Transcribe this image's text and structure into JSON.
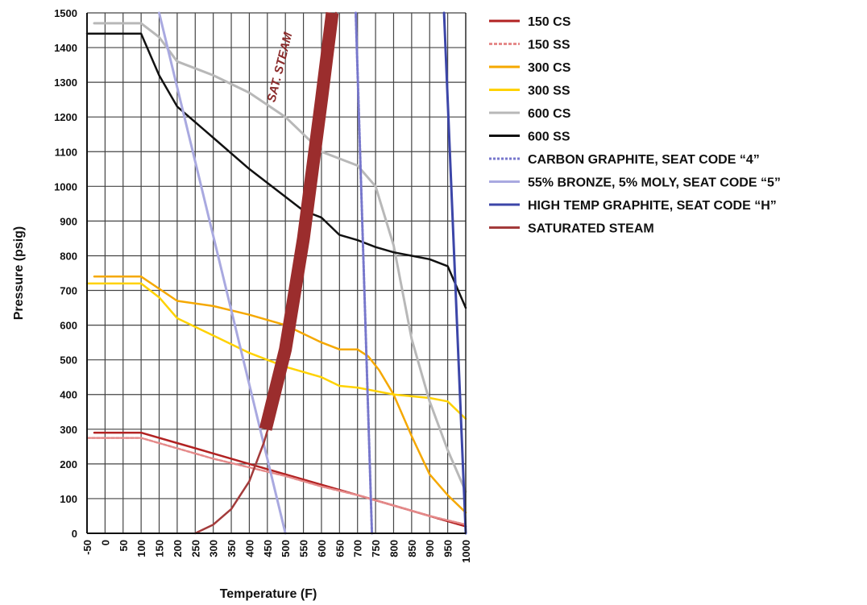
{
  "chart_data": {
    "type": "line",
    "title": "",
    "xlabel": "Temperature (F)",
    "ylabel": "Pressure (psig)",
    "xlim": [
      -50,
      1000
    ],
    "ylim": [
      0,
      1500
    ],
    "x_ticks": [
      -50,
      0,
      50,
      100,
      150,
      200,
      250,
      300,
      350,
      400,
      450,
      500,
      550,
      600,
      650,
      700,
      750,
      800,
      850,
      900,
      950,
      1000
    ],
    "y_ticks": [
      0,
      100,
      200,
      300,
      400,
      500,
      600,
      700,
      800,
      900,
      1000,
      1100,
      1200,
      1300,
      1400,
      1500
    ],
    "grid": true,
    "legend_position": "right",
    "annotations": [
      {
        "text": "SAT. STEAM",
        "x": 520,
        "y": 1380
      }
    ],
    "series": [
      {
        "name": "150 CS",
        "color": "#b22222",
        "width": 2.5,
        "dash": "",
        "points": [
          [
            -30,
            290
          ],
          [
            100,
            290
          ],
          [
            200,
            260
          ],
          [
            300,
            230
          ],
          [
            400,
            200
          ],
          [
            500,
            170
          ],
          [
            600,
            140
          ],
          [
            700,
            110
          ],
          [
            800,
            80
          ],
          [
            900,
            50
          ],
          [
            1000,
            20
          ]
        ]
      },
      {
        "name": "150 SS",
        "color": "#e58a8a",
        "width": 2.5,
        "dash": "4,2",
        "points": [
          [
            -50,
            275
          ],
          [
            100,
            275
          ],
          [
            200,
            245
          ],
          [
            300,
            215
          ],
          [
            400,
            190
          ],
          [
            500,
            165
          ],
          [
            600,
            135
          ],
          [
            700,
            110
          ],
          [
            800,
            80
          ],
          [
            900,
            50
          ],
          [
            1000,
            25
          ]
        ]
      },
      {
        "name": "300 CS",
        "color": "#f5a800",
        "width": 2.5,
        "dash": "",
        "points": [
          [
            -30,
            740
          ],
          [
            100,
            740
          ],
          [
            150,
            705
          ],
          [
            200,
            670
          ],
          [
            300,
            655
          ],
          [
            400,
            630
          ],
          [
            500,
            600
          ],
          [
            550,
            575
          ],
          [
            600,
            550
          ],
          [
            650,
            530
          ],
          [
            700,
            530
          ],
          [
            730,
            510
          ],
          [
            760,
            470
          ],
          [
            800,
            400
          ],
          [
            850,
            280
          ],
          [
            900,
            170
          ],
          [
            950,
            110
          ],
          [
            1000,
            60
          ]
        ]
      },
      {
        "name": "300 SS",
        "color": "#ffd200",
        "width": 2.5,
        "dash": "",
        "points": [
          [
            -50,
            720
          ],
          [
            100,
            720
          ],
          [
            150,
            680
          ],
          [
            200,
            620
          ],
          [
            300,
            570
          ],
          [
            400,
            520
          ],
          [
            500,
            480
          ],
          [
            600,
            450
          ],
          [
            650,
            425
          ],
          [
            700,
            420
          ],
          [
            800,
            400
          ],
          [
            900,
            390
          ],
          [
            950,
            380
          ],
          [
            1000,
            330
          ]
        ]
      },
      {
        "name": "600 CS",
        "color": "#b8b8b8",
        "width": 3,
        "dash": "",
        "points": [
          [
            -30,
            1470
          ],
          [
            100,
            1470
          ],
          [
            150,
            1430
          ],
          [
            200,
            1360
          ],
          [
            300,
            1320
          ],
          [
            400,
            1270
          ],
          [
            500,
            1200
          ],
          [
            550,
            1150
          ],
          [
            600,
            1100
          ],
          [
            650,
            1080
          ],
          [
            700,
            1060
          ],
          [
            750,
            1000
          ],
          [
            800,
            830
          ],
          [
            850,
            560
          ],
          [
            900,
            380
          ],
          [
            950,
            240
          ],
          [
            1000,
            120
          ]
        ]
      },
      {
        "name": "600 SS",
        "color": "#111111",
        "width": 2.5,
        "dash": "",
        "points": [
          [
            -50,
            1440
          ],
          [
            100,
            1440
          ],
          [
            150,
            1320
          ],
          [
            200,
            1230
          ],
          [
            300,
            1140
          ],
          [
            400,
            1050
          ],
          [
            500,
            970
          ],
          [
            550,
            930
          ],
          [
            600,
            910
          ],
          [
            650,
            860
          ],
          [
            700,
            845
          ],
          [
            750,
            825
          ],
          [
            800,
            810
          ],
          [
            900,
            790
          ],
          [
            950,
            770
          ],
          [
            1000,
            650
          ]
        ]
      },
      {
        "name": "CARBON GRAPHITE, SEAT CODE “4”",
        "color": "#7777cc",
        "width": 3,
        "dash": "3,2",
        "points": [
          [
            740,
            0
          ],
          [
            695,
            1500
          ]
        ]
      },
      {
        "name": "55% BRONZE, 5% MOLY, SEAT CODE “5”",
        "color": "#a9a9e0",
        "width": 3,
        "dash": "",
        "points": [
          [
            500,
            0
          ],
          [
            150,
            1500
          ]
        ]
      },
      {
        "name": "HIGH TEMP GRAPHITE, SEAT CODE “H”",
        "color": "#3c46a8",
        "width": 3,
        "dash": "",
        "points": [
          [
            1000,
            0
          ],
          [
            940,
            1500
          ]
        ]
      },
      {
        "name": "SATURATED STEAM",
        "color": "#a33b3b",
        "width": 2.5,
        "dash": "",
        "points": [
          [
            250,
            0
          ],
          [
            300,
            25
          ],
          [
            350,
            70
          ],
          [
            400,
            150
          ],
          [
            440,
            260
          ],
          [
            460,
            330
          ],
          [
            500,
            520
          ],
          [
            550,
            800
          ],
          [
            600,
            1150
          ],
          [
            640,
            1500
          ]
        ]
      }
    ],
    "sat_steam_band": {
      "color": "#9b2d2d",
      "points": [
        [
          445,
          300
        ],
        [
          500,
          530
        ],
        [
          550,
          850
        ],
        [
          600,
          1250
        ],
        [
          630,
          1500
        ]
      ]
    }
  }
}
